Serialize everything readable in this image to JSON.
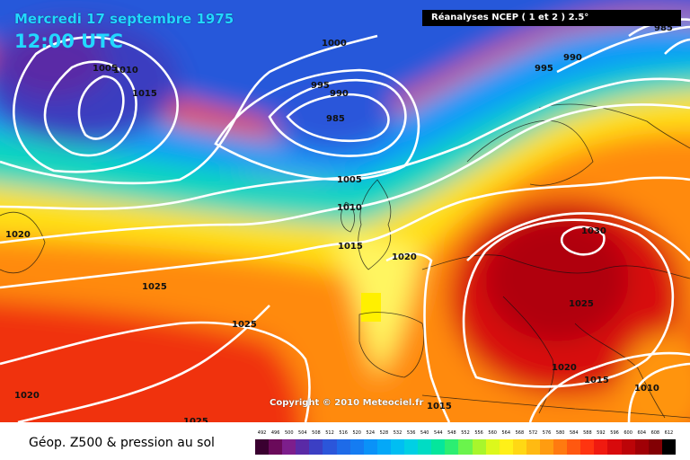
{
  "title": {
    "date": "Mercredi 17 septembre 1975",
    "time": "12:00 UTC"
  },
  "source": "Réanalyses NCEP ( 1 et 2 ) 2.5°",
  "copyright": "Copyright © 2010 Meteociel.fr",
  "legend": {
    "title": "Géop. Z500 & pression au sol",
    "scale_values": [
      "492",
      "496",
      "500",
      "504",
      "508",
      "512",
      "516",
      "520",
      "524",
      "528",
      "532",
      "536",
      "540",
      "544",
      "548",
      "552",
      "556",
      "560",
      "564",
      "568",
      "572",
      "576",
      "580",
      "584",
      "588",
      "592",
      "596",
      "600",
      "604",
      "608",
      "612"
    ],
    "scale_colors": [
      "#3a0030",
      "#6a0a5a",
      "#7d1e8c",
      "#5a2aa6",
      "#3b3fc4",
      "#2b56da",
      "#1e6be8",
      "#147cf2",
      "#0a92f8",
      "#04a8f8",
      "#00bef2",
      "#00d0e4",
      "#00dcc4",
      "#04e69c",
      "#2cee72",
      "#6af44c",
      "#a8f62c",
      "#dcf81c",
      "#fff018",
      "#ffd814",
      "#ffba12",
      "#ff9c10",
      "#ff7a10",
      "#ff5810",
      "#ff3410",
      "#f01a10",
      "#d80a0c",
      "#bc0408",
      "#a00006",
      "#820004",
      "#000000"
    ]
  },
  "isobars": [
    {
      "label": "1000"
    },
    {
      "label": "1005"
    },
    {
      "label": "1010"
    },
    {
      "label": "1015"
    },
    {
      "label": "995"
    },
    {
      "label": "990"
    },
    {
      "label": "985"
    },
    {
      "label": "1005"
    },
    {
      "label": "1010"
    },
    {
      "label": "1015"
    },
    {
      "label": "1020"
    },
    {
      "label": "1025"
    },
    {
      "label": "1025"
    },
    {
      "label": "1020"
    },
    {
      "label": "1025"
    },
    {
      "label": "1020"
    },
    {
      "label": "1030"
    },
    {
      "label": "1025"
    },
    {
      "label": "1020"
    },
    {
      "label": "1015"
    },
    {
      "label": "1010"
    },
    {
      "label": "1015"
    },
    {
      "label": "995"
    },
    {
      "label": "990"
    },
    {
      "label": "985"
    },
    {
      "label": "1020"
    },
    {
      "label": "1025"
    }
  ]
}
